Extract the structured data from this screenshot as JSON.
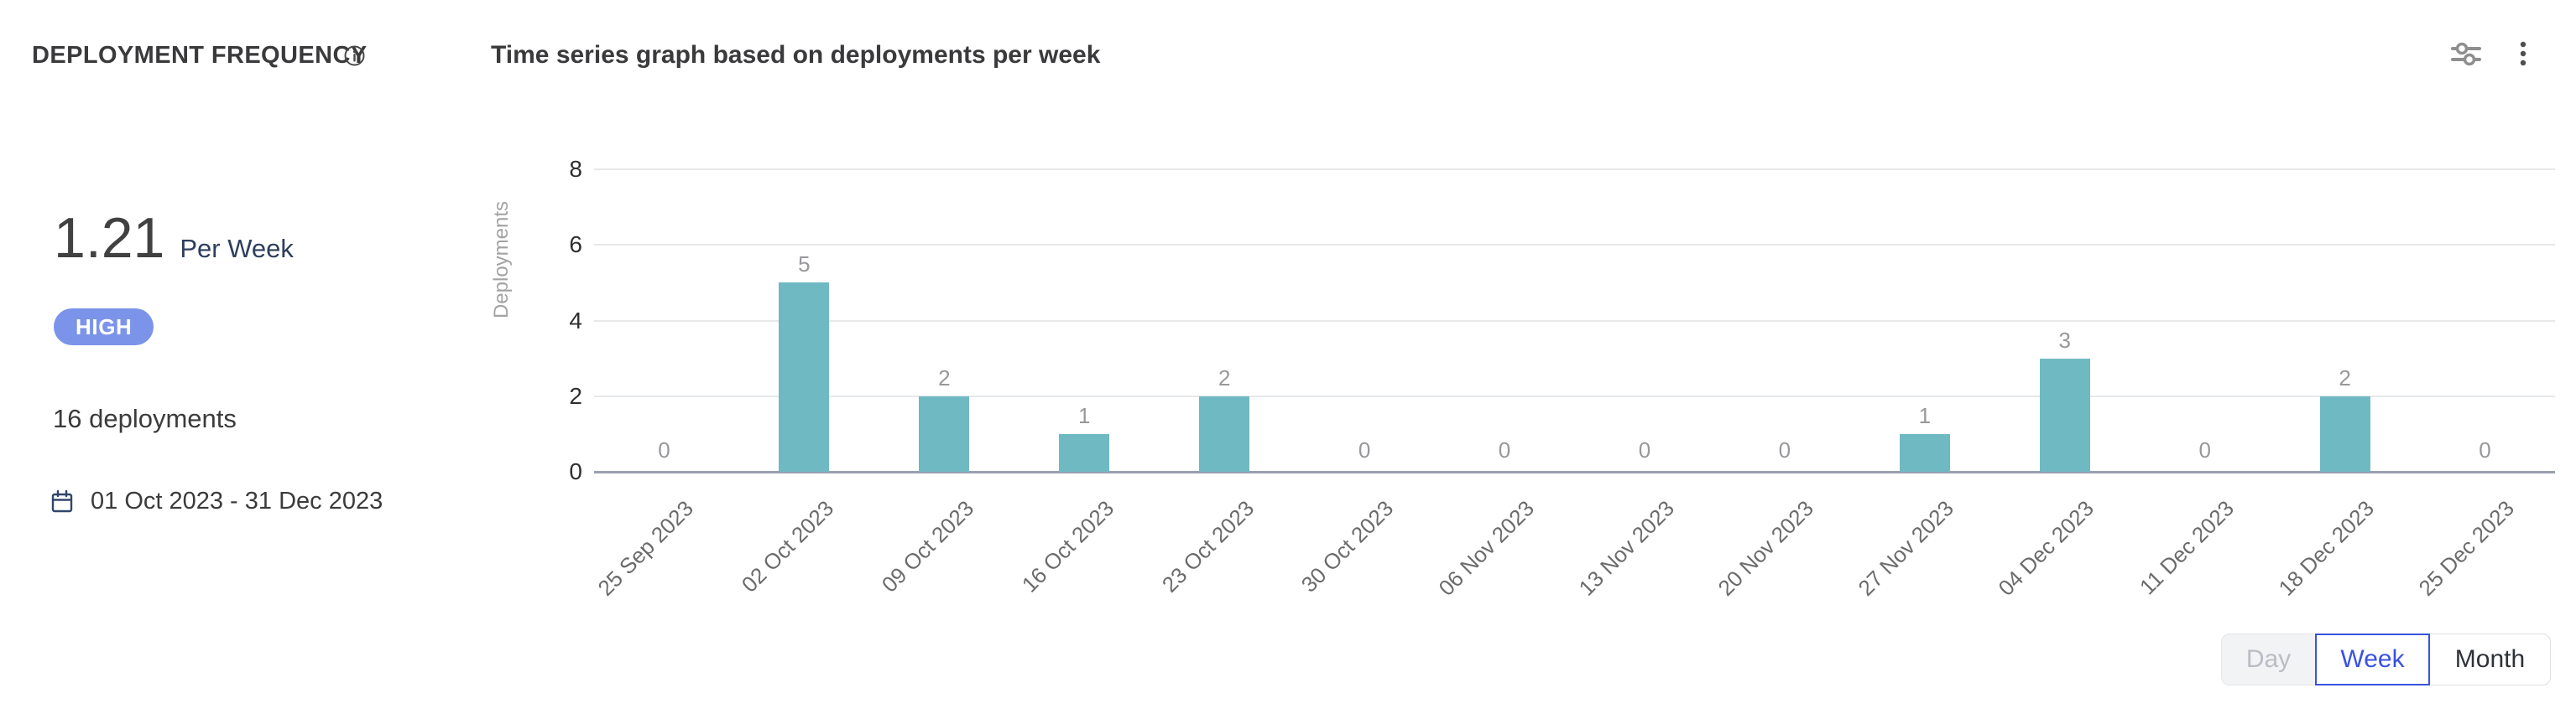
{
  "header": {
    "title": "DEPLOYMENT FREQUENCY",
    "subtitle": "Time series graph based on deployments per week"
  },
  "summary": {
    "rate_value": "1.21",
    "rate_unit": "Per Week",
    "level": "HIGH",
    "total_deployments": "16 deployments",
    "date_range": "01 Oct 2023 - 31 Dec 2023"
  },
  "chart_data": {
    "type": "bar",
    "title": "Time series graph based on deployments per week",
    "xlabel": "",
    "ylabel": "Deployments",
    "categories": [
      "25 Sep 2023",
      "02 Oct 2023",
      "09 Oct 2023",
      "16 Oct 2023",
      "23 Oct 2023",
      "30 Oct 2023",
      "06 Nov 2023",
      "13 Nov 2023",
      "20 Nov 2023",
      "27 Nov 2023",
      "04 Dec 2023",
      "11 Dec 2023",
      "18 Dec 2023",
      "25 Dec 2023"
    ],
    "values": [
      0,
      5,
      2,
      1,
      2,
      0,
      0,
      0,
      0,
      1,
      3,
      0,
      2,
      0
    ],
    "ylim": [
      0,
      8
    ],
    "yticks": [
      0,
      2,
      4,
      6,
      8
    ],
    "grid": true,
    "legend": "none",
    "value_labels_shown": true,
    "bar_color": "#6FB9C3"
  },
  "granularity": {
    "day": "Day",
    "week": "Week",
    "month": "Month",
    "selected": "Week"
  },
  "icons": {
    "info": "info-circle-icon",
    "filter": "sliders-icon",
    "menu": "kebab-menu-icon",
    "calendar": "calendar-icon"
  },
  "colors": {
    "bar": "#6FB9C3",
    "badge_bg": "#7B94E9",
    "selected_accent": "#3952E1",
    "gridline": "#E7E8EA",
    "baseline": "#99A0AE"
  }
}
